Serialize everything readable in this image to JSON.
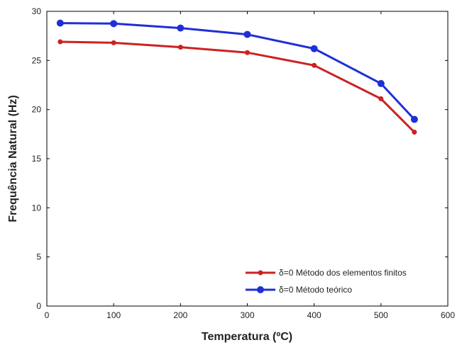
{
  "chart_data": {
    "type": "line",
    "title": "",
    "xlabel": "Temperatura (ºC)",
    "ylabel": "Frequência Natural (Hz)",
    "xlim": [
      0,
      600
    ],
    "ylim": [
      0,
      30
    ],
    "xticks": [
      0,
      100,
      200,
      300,
      400,
      500,
      600
    ],
    "yticks": [
      0,
      5,
      10,
      15,
      20,
      25,
      30
    ],
    "grid": false,
    "legend_position": "bottom-right",
    "x": [
      20,
      100,
      200,
      300,
      400,
      500,
      550
    ],
    "series": [
      {
        "name": "δ=0 Método dos elementos finitos",
        "color": "#cc2222",
        "values": [
          26.9,
          26.8,
          26.35,
          25.8,
          24.5,
          21.1,
          17.7
        ],
        "marker": "small-dot"
      },
      {
        "name": "δ=0 Método teórico",
        "color": "#1f2fd6",
        "values": [
          28.8,
          28.75,
          28.3,
          27.65,
          26.2,
          22.65,
          19.0
        ],
        "marker": "large-dot"
      }
    ]
  }
}
